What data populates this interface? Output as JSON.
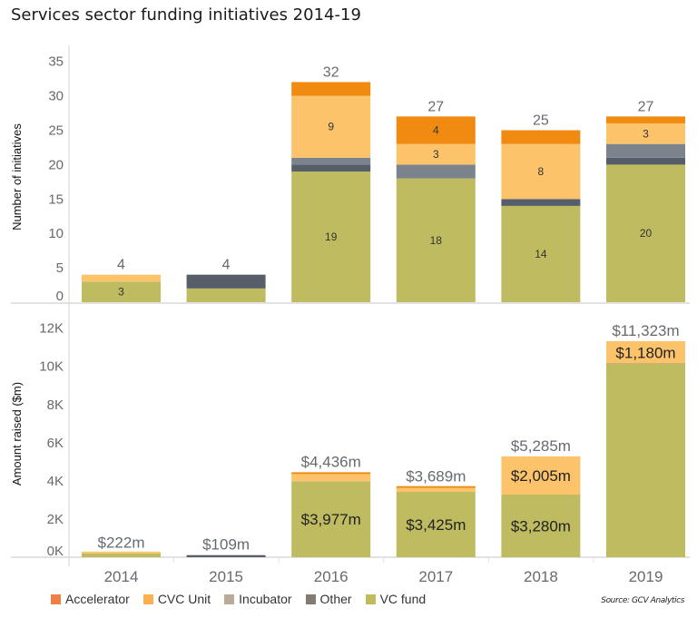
{
  "title": "Services sector funding initiatives 2014-19",
  "source": "Source: GCV Analytics",
  "legend": [
    {
      "name": "Accelerator",
      "color": "#f07f45"
    },
    {
      "name": "CVC Unit",
      "color": "#fcb050"
    },
    {
      "name": "Incubator",
      "color": "#bcaa98"
    },
    {
      "name": "Other",
      "color": "#837a72"
    },
    {
      "name": "VC fund",
      "color": "#c2bb5e"
    }
  ],
  "colors": {
    "Accelerator": "#f08a10",
    "CVC Unit": "#fcc36b",
    "Incubator": "#7c838d",
    "Other": "#565e6a",
    "VC fund": "#bfbb61"
  },
  "chart_data": [
    {
      "type": "bar",
      "stacked": true,
      "title": "Services sector funding initiatives 2014-19",
      "xlabel": "",
      "ylabel": "Number of initiatives",
      "ylim": [
        0,
        35
      ],
      "yticks": [
        0,
        5,
        10,
        15,
        20,
        25,
        30,
        35
      ],
      "ytick_labels": [
        "0",
        "5",
        "10",
        "15",
        "20",
        "25",
        "30",
        "35"
      ],
      "grid": false,
      "categories": [
        "2014",
        "2015",
        "2016",
        "2017",
        "2018",
        "2019"
      ],
      "series": [
        {
          "name": "VC fund",
          "values": [
            3,
            2,
            19,
            18,
            14,
            20
          ],
          "labels": [
            "3",
            "",
            "19",
            "18",
            "14",
            "20"
          ]
        },
        {
          "name": "Other",
          "values": [
            0,
            2,
            1,
            0,
            1,
            1
          ],
          "labels": [
            "",
            "",
            "",
            "",
            "",
            ""
          ]
        },
        {
          "name": "Incubator",
          "values": [
            0,
            0,
            1,
            2,
            0,
            2
          ],
          "labels": [
            "",
            "",
            "",
            "",
            "",
            ""
          ]
        },
        {
          "name": "CVC Unit",
          "values": [
            1,
            0,
            9,
            3,
            8,
            3
          ],
          "labels": [
            "",
            "",
            "9",
            "3",
            "8",
            "3"
          ]
        },
        {
          "name": "Accelerator",
          "values": [
            0,
            0,
            2,
            4,
            2,
            1
          ],
          "labels": [
            "",
            "",
            "",
            "4",
            "",
            ""
          ]
        }
      ],
      "totals": [
        4,
        4,
        32,
        27,
        25,
        27
      ],
      "total_labels": [
        "4",
        "4",
        "32",
        "27",
        "25",
        "27"
      ]
    },
    {
      "type": "bar",
      "stacked": true,
      "xlabel": "",
      "ylabel": "Amount raised ($m)",
      "ylim": [
        0,
        12000
      ],
      "yticks": [
        0,
        2000,
        4000,
        6000,
        8000,
        10000,
        12000
      ],
      "ytick_labels": [
        "0K",
        "2K",
        "4K",
        "6K",
        "8K",
        "10K",
        "12K"
      ],
      "grid": false,
      "categories": [
        "2014",
        "2015",
        "2016",
        "2017",
        "2018",
        "2019"
      ],
      "series": [
        {
          "name": "VC fund",
          "values": [
            200,
            0,
            3977,
            3425,
            3280,
            10133
          ],
          "labels": [
            "",
            "",
            "$3,977m",
            "$3,425m",
            "$3,280m",
            ""
          ]
        },
        {
          "name": "Other",
          "values": [
            0,
            109,
            0,
            0,
            0,
            10
          ],
          "labels": [
            "",
            "",
            "",
            "",
            "",
            ""
          ]
        },
        {
          "name": "Incubator",
          "values": [
            0,
            0,
            0,
            0,
            0,
            0
          ],
          "labels": [
            "",
            "",
            "",
            "",
            "",
            ""
          ]
        },
        {
          "name": "CVC Unit",
          "values": [
            22,
            0,
            379,
            204,
            2005,
            1180
          ],
          "labels": [
            "",
            "",
            "",
            "",
            "$2,005m",
            "$1,180m"
          ]
        },
        {
          "name": "Accelerator",
          "values": [
            0,
            0,
            80,
            60,
            0,
            0
          ],
          "labels": [
            "",
            "",
            "",
            "",
            "",
            ""
          ]
        }
      ],
      "totals": [
        222,
        109,
        4436,
        3689,
        5285,
        11323
      ],
      "total_labels": [
        "$222m",
        "$109m",
        "$4,436m",
        "$3,689m",
        "$5,285m",
        "$11,323m"
      ]
    }
  ]
}
